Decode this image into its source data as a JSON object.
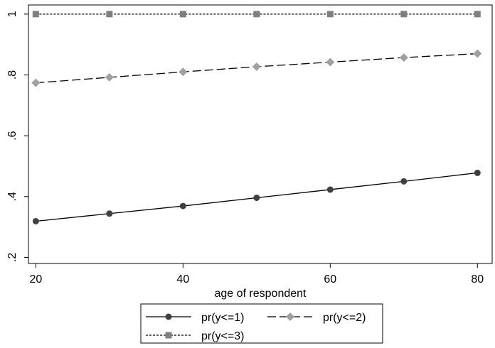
{
  "chart_data": {
    "type": "line",
    "title": "",
    "xlabel": "age of respondent",
    "ylabel": "",
    "x": [
      20,
      30,
      40,
      50,
      60,
      70,
      80
    ],
    "xlim": [
      19,
      82
    ],
    "ylim": [
      0.18,
      1.03
    ],
    "xticks": [
      20,
      40,
      60,
      80
    ],
    "xtick_labels": [
      "20",
      "40",
      "60",
      "80"
    ],
    "yticks": [
      0.2,
      0.4,
      0.6,
      0.8,
      1
    ],
    "ytick_labels": [
      ".2",
      ".4",
      ".6",
      ".8",
      "1"
    ],
    "grid": false,
    "legend_placement": "bottom",
    "series": [
      {
        "name": "pr(y<=1)",
        "values": [
          0.319,
          0.344,
          0.369,
          0.396,
          0.423,
          0.45,
          0.478
        ],
        "line_style": "solid",
        "line_color": "#000000",
        "marker": "circle",
        "marker_color": "#404040"
      },
      {
        "name": "pr(y<=2)",
        "values": [
          0.774,
          0.792,
          0.81,
          0.827,
          0.842,
          0.857,
          0.87
        ],
        "line_style": "long-dash",
        "line_color": "#000000",
        "marker": "diamond",
        "marker_color": "#a0a0a0"
      },
      {
        "name": "pr(y<=3)",
        "values": [
          1,
          1,
          1,
          1,
          1,
          1,
          1
        ],
        "line_style": "short-dash",
        "line_color": "#000000",
        "marker": "square",
        "marker_color": "#7f7f7f"
      }
    ]
  }
}
